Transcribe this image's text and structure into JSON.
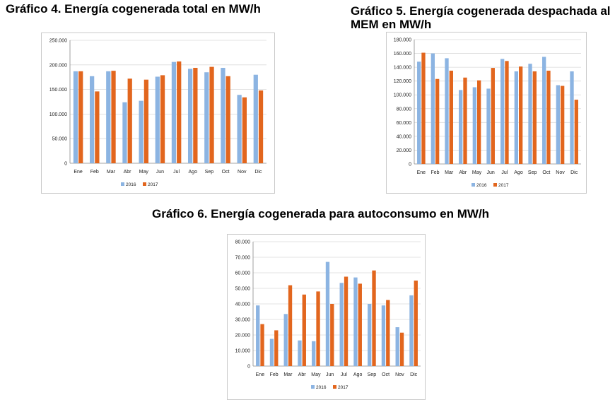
{
  "colors": {
    "s2016": "#8cb4e2",
    "s2017": "#e2661e",
    "grid": "#dadada",
    "axis": "#888888"
  },
  "chart_data": [
    {
      "id": "chart4",
      "type": "bar",
      "title": "Gráfico 4. Energía cogenerada total en MW/h",
      "categories": [
        "Ene",
        "Feb",
        "Mar",
        "Abr",
        "May",
        "Jun",
        "Jul",
        "Ago",
        "Sep",
        "Oct",
        "Nov",
        "Dic"
      ],
      "series": [
        {
          "name": "2016",
          "values": [
            187000,
            177000,
            187000,
            124000,
            127000,
            176000,
            206000,
            192000,
            185000,
            194000,
            139000,
            180000
          ]
        },
        {
          "name": "2017",
          "values": [
            187000,
            146000,
            188000,
            172000,
            170000,
            179000,
            207000,
            194000,
            196000,
            177000,
            134000,
            148000
          ]
        }
      ],
      "yticks": [
        "0",
        "50.000",
        "100.000",
        "150.000",
        "200.000",
        "250.000"
      ],
      "ylim": [
        0,
        250000
      ],
      "legend": "bottom",
      "grid": true
    },
    {
      "id": "chart5",
      "type": "bar",
      "title": "Gráfico 5. Energía cogenerada despachada al MEM en MW/h",
      "categories": [
        "Ene",
        "Feb",
        "Mar",
        "Abr",
        "May",
        "Jun",
        "Jul",
        "Ago",
        "Sep",
        "Oct",
        "Nov",
        "Dic"
      ],
      "series": [
        {
          "name": "2016",
          "values": [
            148000,
            160000,
            153000,
            107000,
            111000,
            109000,
            152000,
            134000,
            145000,
            155000,
            114000,
            134000
          ]
        },
        {
          "name": "2017",
          "values": [
            161000,
            123000,
            135000,
            125000,
            121000,
            139000,
            149000,
            141000,
            134000,
            135000,
            113000,
            93000
          ]
        }
      ],
      "yticks": [
        "0",
        "20.000",
        "40.000",
        "60.000",
        "80.000",
        "100.000",
        "120.000",
        "140.000",
        "160.000",
        "180.000"
      ],
      "ylim": [
        0,
        180000
      ],
      "legend": "bottom",
      "grid": true
    },
    {
      "id": "chart6",
      "type": "bar",
      "title": "Gráfico 6. Energía cogenerada para autoconsumo en MW/h",
      "categories": [
        "Ene",
        "Feb",
        "Mar",
        "Abr",
        "May",
        "Jun",
        "Jul",
        "Ago",
        "Sep",
        "Oct",
        "Nov",
        "Dic"
      ],
      "series": [
        {
          "name": "2016",
          "values": [
            39000,
            17500,
            33500,
            16500,
            16000,
            67000,
            53500,
            57000,
            40000,
            39000,
            25000,
            45500
          ]
        },
        {
          "name": "2017",
          "values": [
            27000,
            23000,
            52000,
            46000,
            48000,
            40000,
            57500,
            53000,
            61500,
            42500,
            21500,
            55000
          ]
        }
      ],
      "yticks": [
        "0",
        "10.000",
        "20.000",
        "30.000",
        "40.000",
        "50.000",
        "60.000",
        "70.000",
        "80.000"
      ],
      "ylim": [
        0,
        80000
      ],
      "legend": "bottom",
      "grid": true
    }
  ]
}
